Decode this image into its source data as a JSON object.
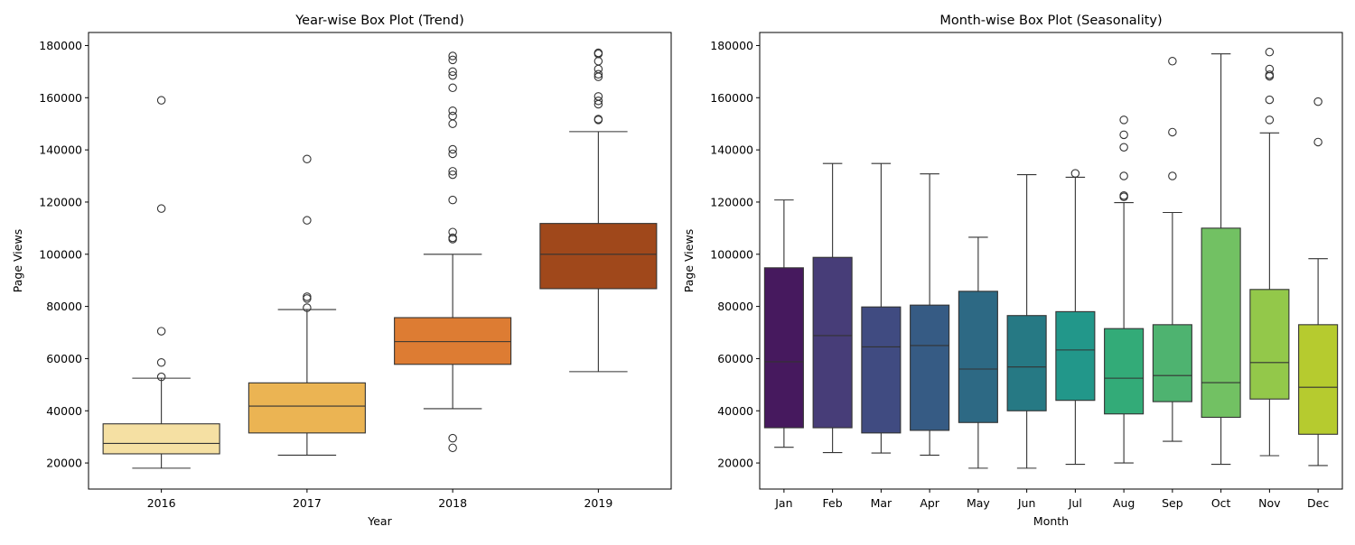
{
  "chart_data": [
    {
      "type": "box",
      "title": "Year-wise Box Plot (Trend)",
      "xlabel": "Year",
      "ylabel": "Page Views",
      "ylim": [
        10000,
        185000
      ],
      "yticks": [
        20000,
        40000,
        60000,
        80000,
        100000,
        120000,
        140000,
        160000,
        180000
      ],
      "grid": false,
      "legend": "none",
      "categories": [
        "2016",
        "2017",
        "2018",
        "2019"
      ],
      "colors": [
        "#f5e0a3",
        "#ebb453",
        "#dd7c33",
        "#a0481b"
      ],
      "boxes": [
        {
          "q1": 23500,
          "median": 27500,
          "q3": 35000,
          "whisker_low": 18000,
          "whisker_high": 52500,
          "outliers": [
            53000,
            58500,
            70500,
            117500,
            159000
          ]
        },
        {
          "q1": 31500,
          "median": 41800,
          "q3": 50700,
          "whisker_low": 23000,
          "whisker_high": 78800,
          "outliers": [
            79500,
            83000,
            83700,
            113000,
            136500
          ]
        },
        {
          "q1": 57800,
          "median": 66500,
          "q3": 75700,
          "whisker_low": 40800,
          "whisker_high": 100000,
          "outliers": [
            25800,
            29500,
            105800,
            106300,
            108500,
            120800,
            130500,
            131800,
            138500,
            140200,
            150000,
            153000,
            155000,
            163800,
            168500,
            170000,
            174500,
            176000
          ]
        },
        {
          "q1": 86800,
          "median": 100000,
          "q3": 111800,
          "whisker_low": 55000,
          "whisker_high": 147000,
          "outliers": [
            151500,
            151800,
            157500,
            158800,
            160500,
            168000,
            169000,
            171000,
            174000,
            176800,
            177200
          ]
        }
      ]
    },
    {
      "type": "box",
      "title": "Month-wise Box Plot (Seasonality)",
      "xlabel": "Month",
      "ylabel": "Page Views",
      "ylim": [
        10000,
        185000
      ],
      "yticks": [
        20000,
        40000,
        60000,
        80000,
        100000,
        120000,
        140000,
        160000,
        180000
      ],
      "grid": false,
      "legend": "none",
      "categories": [
        "Jan",
        "Feb",
        "Mar",
        "Apr",
        "May",
        "Jun",
        "Jul",
        "Aug",
        "Sep",
        "Oct",
        "Nov",
        "Dec"
      ],
      "colors": [
        "#46195e",
        "#473d78",
        "#404b81",
        "#365b84",
        "#2d6984",
        "#267984",
        "#22978a",
        "#33ab78",
        "#4eb370",
        "#72c163",
        "#93c84a",
        "#b6cb2f"
      ],
      "boxes": [
        {
          "q1": 33500,
          "median": 58800,
          "q3": 94800,
          "whisker_low": 26000,
          "whisker_high": 120800,
          "outliers": []
        },
        {
          "q1": 33500,
          "median": 68800,
          "q3": 98800,
          "whisker_low": 24000,
          "whisker_high": 134800,
          "outliers": []
        },
        {
          "q1": 31500,
          "median": 64500,
          "q3": 79800,
          "whisker_low": 23800,
          "whisker_high": 134800,
          "outliers": []
        },
        {
          "q1": 32500,
          "median": 65000,
          "q3": 80500,
          "whisker_low": 23000,
          "whisker_high": 130800,
          "outliers": []
        },
        {
          "q1": 35500,
          "median": 56000,
          "q3": 85800,
          "whisker_low": 18000,
          "whisker_high": 106500,
          "outliers": []
        },
        {
          "q1": 40000,
          "median": 56800,
          "q3": 76500,
          "whisker_low": 18000,
          "whisker_high": 130500,
          "outliers": []
        },
        {
          "q1": 44000,
          "median": 63300,
          "q3": 78000,
          "whisker_low": 19500,
          "whisker_high": 129500,
          "outliers": [
            131000
          ]
        },
        {
          "q1": 38800,
          "median": 52500,
          "q3": 71500,
          "whisker_low": 20000,
          "whisker_high": 119800,
          "outliers": [
            122000,
            122500,
            130000,
            141000,
            145800,
            151500
          ]
        },
        {
          "q1": 43500,
          "median": 53500,
          "q3": 73000,
          "whisker_low": 28300,
          "whisker_high": 116000,
          "outliers": [
            130000,
            146800,
            174000
          ]
        },
        {
          "q1": 37500,
          "median": 50800,
          "q3": 110000,
          "whisker_low": 19500,
          "whisker_high": 176800,
          "outliers": []
        },
        {
          "q1": 44500,
          "median": 58500,
          "q3": 86500,
          "whisker_low": 22800,
          "whisker_high": 146500,
          "outliers": [
            151500,
            159200,
            168200,
            168800,
            171000,
            177500
          ]
        },
        {
          "q1": 31000,
          "median": 49000,
          "q3": 73000,
          "whisker_low": 19000,
          "whisker_high": 98300,
          "outliers": [
            143000,
            158500
          ]
        }
      ]
    }
  ]
}
